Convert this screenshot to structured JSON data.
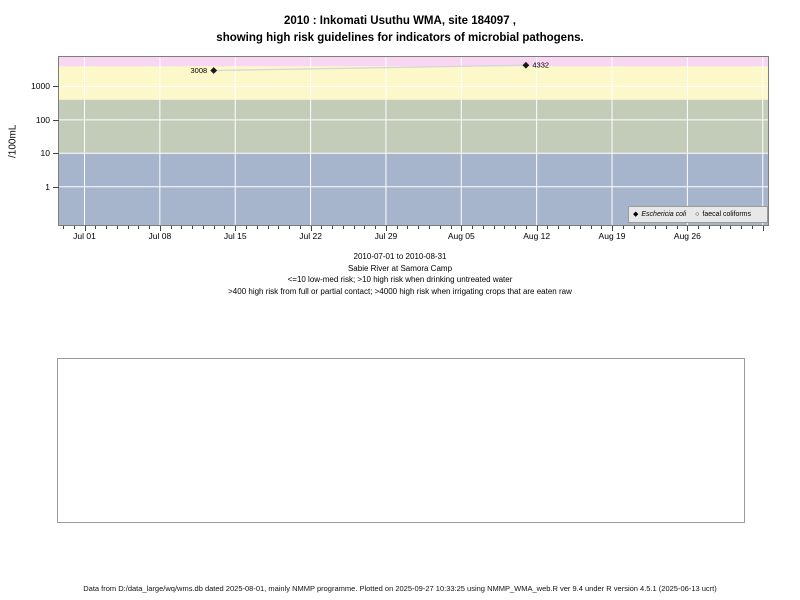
{
  "title": {
    "line1": "2010 : Inkomati Usuthu WMA, site 184097 ,",
    "line2": "showing high risk guidelines for indicators of microbial pathogens."
  },
  "captions": {
    "line1": "2010-07-01 to 2010-08-31",
    "line2": "Sabie River at Samora Camp",
    "line3": "<=10 low-med risk; >10 high risk when drinking untreated water",
    "line4": ">400 high risk from full or partial contact; >4000 high risk when irrigating crops that are eaten raw"
  },
  "legend": {
    "items": [
      {
        "label": "Eschericia coli",
        "glyph": "◆"
      },
      {
        "label": "faecal coliforms",
        "glyph": "○"
      }
    ]
  },
  "footer": {
    "text": "Data from D:/data_large/wq/wms.db dated 2025-08-01, mainly NMMP programme. Plotted on 2025-09-27 10:33:25 using NMMP_WMA_web.R ver 9.4 under R version 4.5.1 (2025-06-13 ucrt)"
  },
  "chart_data": {
    "type": "line",
    "title": "2010 : Inkomati Usuthu WMA, site 184097 , showing high risk guidelines for indicators of microbial pathogens.",
    "y_axis": {
      "label": "/100mL",
      "scale": "log10",
      "ticks": [
        1000,
        100,
        10,
        1
      ],
      "top_value_approx": 7600,
      "bottom_value_approx": 0.07
    },
    "x_axis": {
      "start": "2010-07-01",
      "end": "2010-08-31",
      "ticks": [
        {
          "label": "Jul 01",
          "day": 0
        },
        {
          "label": "Jul 08",
          "day": 7
        },
        {
          "label": "Jul 15",
          "day": 14
        },
        {
          "label": "Jul 22",
          "day": 21
        },
        {
          "label": "Jul 29",
          "day": 28
        },
        {
          "label": "Aug 05",
          "day": 35
        },
        {
          "label": "Aug 12",
          "day": 42
        },
        {
          "label": "Aug 19",
          "day": 49
        },
        {
          "label": "Aug 26",
          "day": 56
        }
      ],
      "minor_ticks": "daily"
    },
    "series": [
      {
        "name": "Eschericia coli",
        "marker": "filled-diamond",
        "points": [
          {
            "date": "2010-07-13",
            "day": 12,
            "value": 3008,
            "label": "3008",
            "label_side": "left"
          },
          {
            "date": "2010-08-11",
            "day": 41,
            "value": 4332,
            "label": "4332",
            "label_side": "right"
          }
        ]
      },
      {
        "name": "faecal coliforms",
        "marker": "open-circle",
        "points": []
      }
    ],
    "risk_bands": [
      {
        "name": "high risk when irrigating crops that are eaten raw",
        "min": 4000,
        "max": null,
        "color": "#f9d7f2"
      },
      {
        "name": "high risk from full or partial contact",
        "min": 400,
        "max": 4000,
        "color": "#fcf8c9"
      },
      {
        "name": "high risk when drinking untreated water",
        "min": 10,
        "max": 400,
        "color": "#c3ccb8"
      },
      {
        "name": "low-med risk",
        "min": null,
        "max": 10,
        "color": "#a6b4cc"
      }
    ],
    "line_color": "#d6d6d6",
    "grid_color": "#ffffff",
    "point_color": "#1a1a1a",
    "legend_position": "bottom-right-inside"
  }
}
